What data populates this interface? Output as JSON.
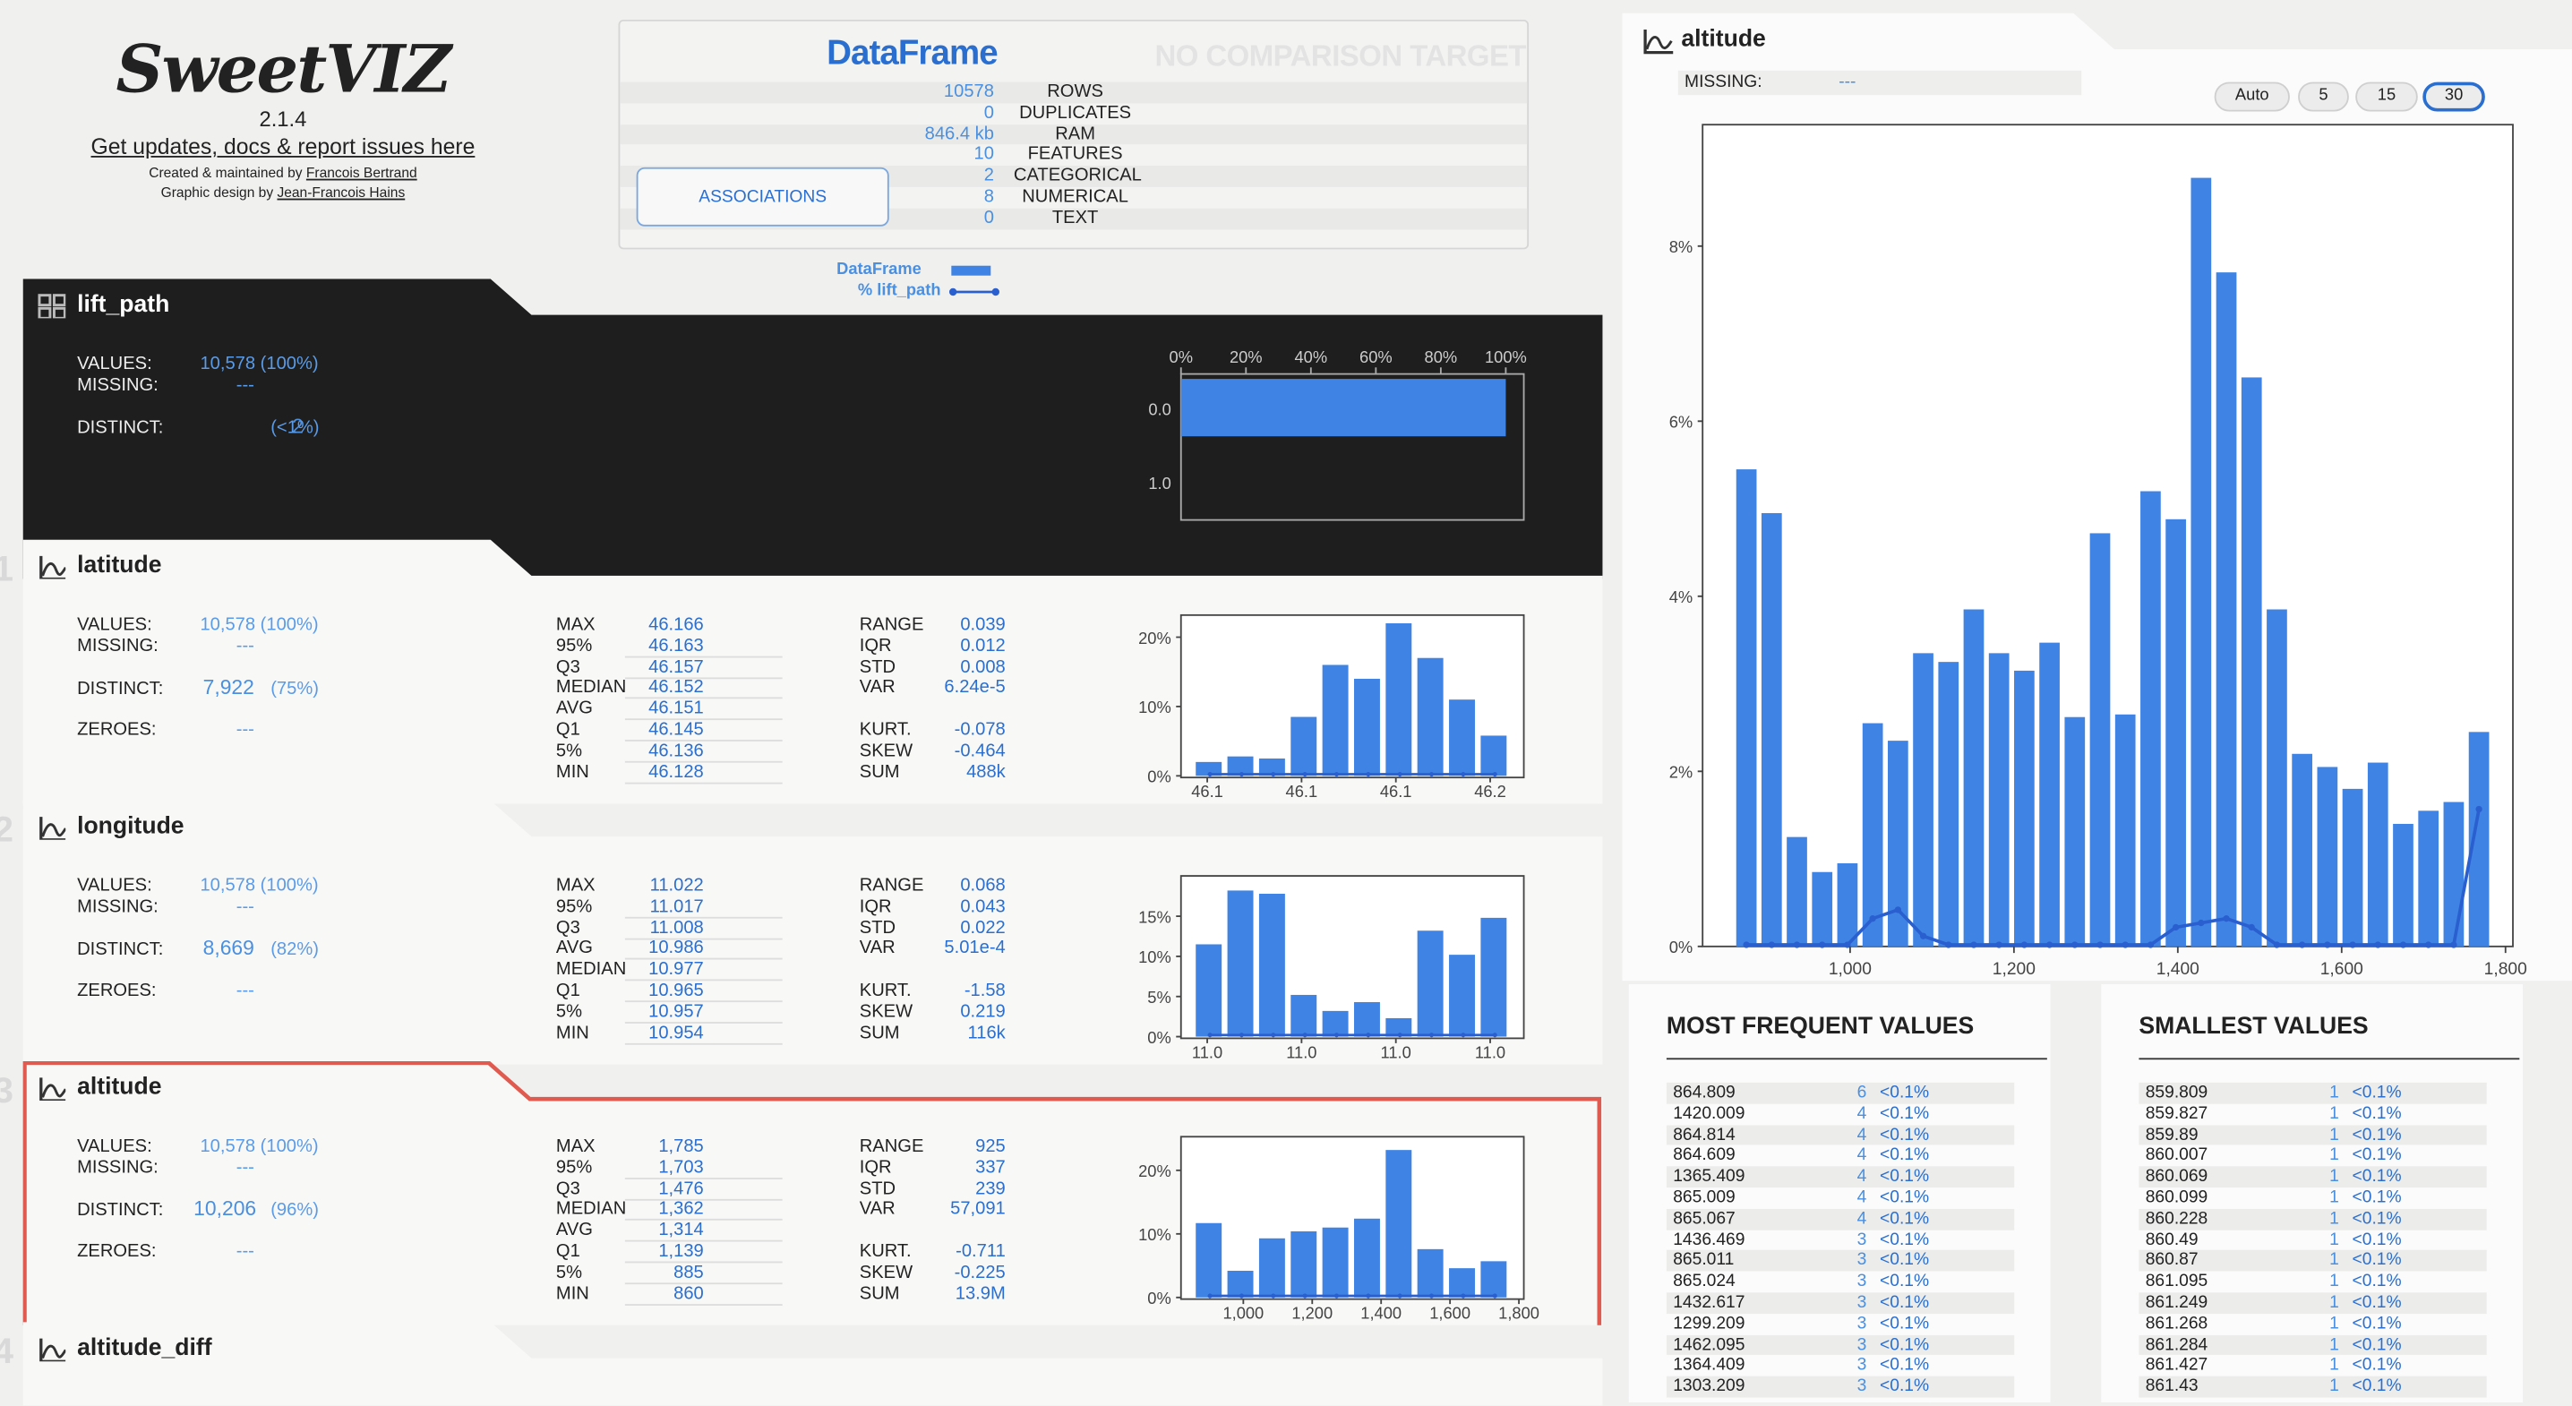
{
  "logo": {
    "mark": "SweetVIZ",
    "version": "2.1.4",
    "link": "Get updates, docs & report issues here",
    "credit1_prefix": "Created & maintained by ",
    "credit1_name": "Francois Bertrand",
    "credit2_prefix": "Graphic design by ",
    "credit2_name": "Jean-Francois Hains"
  },
  "summary": {
    "title": "DataFrame",
    "compare_target": "NO COMPARISON TARGET",
    "rows": [
      {
        "value": "10578",
        "label": "ROWS"
      },
      {
        "value": "0",
        "label": "DUPLICATES"
      },
      {
        "value": "846.4 kb",
        "label": "RAM"
      },
      {
        "value": "10",
        "label": "FEATURES"
      },
      {
        "value": "2",
        "label": "CATEGORICAL"
      },
      {
        "value": "8",
        "label": "NUMERICAL"
      },
      {
        "value": "0",
        "label": "TEXT"
      }
    ],
    "associations_button": "ASSOCIATIONS"
  },
  "legend": {
    "series1": "DataFrame",
    "series2": "% lift_path"
  },
  "features": [
    {
      "index": "",
      "name": "lift_path",
      "values": "10,578 (100%)",
      "missing": "---",
      "distinct_count": "2",
      "distinct_pct": "(<1%)",
      "chart_axis_top": [
        "0%",
        "20%",
        "40%",
        "60%",
        "80%",
        "100%"
      ],
      "chart_categories": [
        "0.0",
        "1.0"
      ]
    },
    {
      "index": "1",
      "name": "latitude",
      "values": "10,578 (100%)",
      "missing": "---",
      "distinct_count": "7,922",
      "distinct_pct": "(75%)",
      "zeroes": "---",
      "quantiles": [
        [
          "MAX",
          "46.166"
        ],
        [
          "95%",
          "46.163"
        ],
        [
          "Q3",
          "46.157"
        ],
        [
          "MEDIAN",
          "46.152"
        ],
        [
          "AVG",
          "46.151"
        ],
        [
          "Q1",
          "46.145"
        ],
        [
          "5%",
          "46.136"
        ],
        [
          "MIN",
          "46.128"
        ]
      ],
      "stats1": [
        [
          "RANGE",
          "0.039"
        ],
        [
          "IQR",
          "0.012"
        ],
        [
          "STD",
          "0.008"
        ],
        [
          "VAR",
          "6.24e-5"
        ]
      ],
      "stats2": [
        [
          "KURT.",
          "-0.078"
        ],
        [
          "SKEW",
          "-0.464"
        ],
        [
          "SUM",
          "488k"
        ]
      ],
      "y_ticks": [
        "20%",
        "10%",
        "0%"
      ],
      "x_ticks": [
        "46.1",
        "46.1",
        "46.1",
        "46.2"
      ]
    },
    {
      "index": "2",
      "name": "longitude",
      "values": "10,578 (100%)",
      "missing": "---",
      "distinct_count": "8,669",
      "distinct_pct": "(82%)",
      "zeroes": "---",
      "quantiles": [
        [
          "MAX",
          "11.022"
        ],
        [
          "95%",
          "11.017"
        ],
        [
          "Q3",
          "11.008"
        ],
        [
          "AVG",
          "10.986"
        ],
        [
          "MEDIAN",
          "10.977"
        ],
        [
          "Q1",
          "10.965"
        ],
        [
          "5%",
          "10.957"
        ],
        [
          "MIN",
          "10.954"
        ]
      ],
      "stats1": [
        [
          "RANGE",
          "0.068"
        ],
        [
          "IQR",
          "0.043"
        ],
        [
          "STD",
          "0.022"
        ],
        [
          "VAR",
          "5.01e-4"
        ]
      ],
      "stats2": [
        [
          "KURT.",
          "-1.58"
        ],
        [
          "SKEW",
          "0.219"
        ],
        [
          "SUM",
          "116k"
        ]
      ],
      "y_ticks": [
        "15%",
        "10%",
        "5%",
        "0%"
      ],
      "x_ticks": [
        "11.0",
        "11.0",
        "11.0",
        "11.0"
      ]
    },
    {
      "index": "3",
      "name": "altitude",
      "values": "10,578 (100%)",
      "missing": "---",
      "distinct_count": "10,206",
      "distinct_pct": "(96%)",
      "zeroes": "---",
      "quantiles": [
        [
          "MAX",
          "1,785"
        ],
        [
          "95%",
          "1,703"
        ],
        [
          "Q3",
          "1,476"
        ],
        [
          "MEDIAN",
          "1,362"
        ],
        [
          "AVG",
          "1,314"
        ],
        [
          "Q1",
          "1,139"
        ],
        [
          "5%",
          "885"
        ],
        [
          "MIN",
          "860"
        ]
      ],
      "stats1": [
        [
          "RANGE",
          "925"
        ],
        [
          "IQR",
          "337"
        ],
        [
          "STD",
          "239"
        ],
        [
          "VAR",
          "57,091"
        ]
      ],
      "stats2": [
        [
          "KURT.",
          "-0.711"
        ],
        [
          "SKEW",
          "-0.225"
        ],
        [
          "SUM",
          "13.9M"
        ]
      ],
      "y_ticks": [
        "20%",
        "10%",
        "0%"
      ],
      "x_ticks": [
        "1,000",
        "1,200",
        "1,400",
        "1,600",
        "1,800"
      ]
    },
    {
      "index": "4",
      "name": "altitude_diff"
    }
  ],
  "field_labels": {
    "values": "VALUES:",
    "missing": "MISSING:",
    "distinct": "DISTINCT:",
    "zeroes": "ZEROES:"
  },
  "detail": {
    "name": "altitude",
    "missing_label": "MISSING:",
    "missing_value": "---",
    "bin_buttons": [
      "Auto",
      "5",
      "15",
      "30"
    ],
    "selected_bins": "30",
    "most_frequent_title": "MOST FREQUENT VALUES",
    "most_frequent": [
      [
        "864.809",
        "6",
        "<0.1%"
      ],
      [
        "1420.009",
        "4",
        "<0.1%"
      ],
      [
        "864.814",
        "4",
        "<0.1%"
      ],
      [
        "864.609",
        "4",
        "<0.1%"
      ],
      [
        "1365.409",
        "4",
        "<0.1%"
      ],
      [
        "865.009",
        "4",
        "<0.1%"
      ],
      [
        "865.067",
        "4",
        "<0.1%"
      ],
      [
        "1436.469",
        "3",
        "<0.1%"
      ],
      [
        "865.011",
        "3",
        "<0.1%"
      ],
      [
        "865.024",
        "3",
        "<0.1%"
      ],
      [
        "1432.617",
        "3",
        "<0.1%"
      ],
      [
        "1299.209",
        "3",
        "<0.1%"
      ],
      [
        "1462.095",
        "3",
        "<0.1%"
      ],
      [
        "1364.409",
        "3",
        "<0.1%"
      ],
      [
        "1303.209",
        "3",
        "<0.1%"
      ]
    ],
    "smallest_title": "SMALLEST VALUES",
    "smallest": [
      [
        "859.809",
        "1",
        "<0.1%"
      ],
      [
        "859.827",
        "1",
        "<0.1%"
      ],
      [
        "859.89",
        "1",
        "<0.1%"
      ],
      [
        "860.007",
        "1",
        "<0.1%"
      ],
      [
        "860.069",
        "1",
        "<0.1%"
      ],
      [
        "860.099",
        "1",
        "<0.1%"
      ],
      [
        "860.228",
        "1",
        "<0.1%"
      ],
      [
        "860.49",
        "1",
        "<0.1%"
      ],
      [
        "860.87",
        "1",
        "<0.1%"
      ],
      [
        "861.095",
        "1",
        "<0.1%"
      ],
      [
        "861.249",
        "1",
        "<0.1%"
      ],
      [
        "861.268",
        "1",
        "<0.1%"
      ],
      [
        "861.284",
        "1",
        "<0.1%"
      ],
      [
        "861.427",
        "1",
        "<0.1%"
      ],
      [
        "861.43",
        "1",
        "<0.1%"
      ]
    ]
  },
  "chart_data": [
    {
      "type": "bar",
      "orientation": "horizontal",
      "categories": [
        "0.0",
        "1.0"
      ],
      "values": [
        100,
        0
      ],
      "xlim": [
        0,
        100
      ],
      "x_ticks": [
        "0%",
        "20%",
        "40%",
        "60%",
        "80%",
        "100%"
      ]
    },
    {
      "type": "bar",
      "series": [
        {
          "values": [
            2.0,
            2.8,
            2.5,
            8.5,
            16.0,
            14.0,
            22.0,
            17.0,
            11.0,
            5.8
          ]
        }
      ],
      "ylim": [
        0,
        22
      ],
      "y_ticks": [
        "0%",
        "10%",
        "20%"
      ],
      "x_ticks": [
        "46.1",
        "46.1",
        "46.1",
        "46.2"
      ]
    },
    {
      "type": "bar",
      "series": [
        {
          "values": [
            11.5,
            18.2,
            17.8,
            5.2,
            3.2,
            4.3,
            2.3,
            13.2,
            10.2,
            14.8
          ]
        }
      ],
      "ylim": [
        0,
        19
      ],
      "y_ticks": [
        "0%",
        "5%",
        "10%",
        "15%"
      ],
      "x_ticks": [
        "11.0",
        "11.0",
        "11.0",
        "11.0"
      ]
    },
    {
      "type": "bar",
      "series": [
        {
          "values": [
            11.7,
            4.2,
            9.3,
            10.4,
            11.0,
            12.4,
            23.2,
            7.6,
            4.6,
            5.7
          ]
        }
      ],
      "ylim": [
        0,
        24
      ],
      "y_ticks": [
        "0%",
        "10%",
        "20%"
      ],
      "x_ticks": [
        "1,000",
        "1,200",
        "1,400",
        "1,600",
        "1,800"
      ]
    },
    {
      "type": "bar",
      "title": "altitude",
      "x_range": [
        860,
        1785
      ],
      "bins": 30,
      "series": [
        {
          "name": "DataFrame",
          "values": [
            5.45,
            4.95,
            1.25,
            0.85,
            0.95,
            2.55,
            2.35,
            3.35,
            3.25,
            3.85,
            3.35,
            3.15,
            3.47,
            2.62,
            4.72,
            2.65,
            5.2,
            4.88,
            8.78,
            7.7,
            6.5,
            3.85,
            2.2,
            2.05,
            1.8,
            2.1,
            1.4,
            1.55,
            1.65,
            2.45
          ]
        },
        {
          "name": "% lift_path",
          "values": [
            0,
            0,
            0,
            0,
            0,
            0.3,
            0.4,
            0.1,
            0,
            0,
            0,
            0,
            0,
            0,
            0,
            0,
            0,
            0.2,
            0.25,
            0.3,
            0.2,
            0,
            0,
            0,
            0,
            0,
            0,
            0,
            0,
            1.55
          ]
        }
      ],
      "ylim": [
        0,
        9.2
      ],
      "y_ticks": [
        "0%",
        "2%",
        "4%",
        "6%",
        "8%"
      ],
      "x_ticks": [
        "1,000",
        "1,200",
        "1,400",
        "1,600",
        "1,800"
      ]
    }
  ]
}
